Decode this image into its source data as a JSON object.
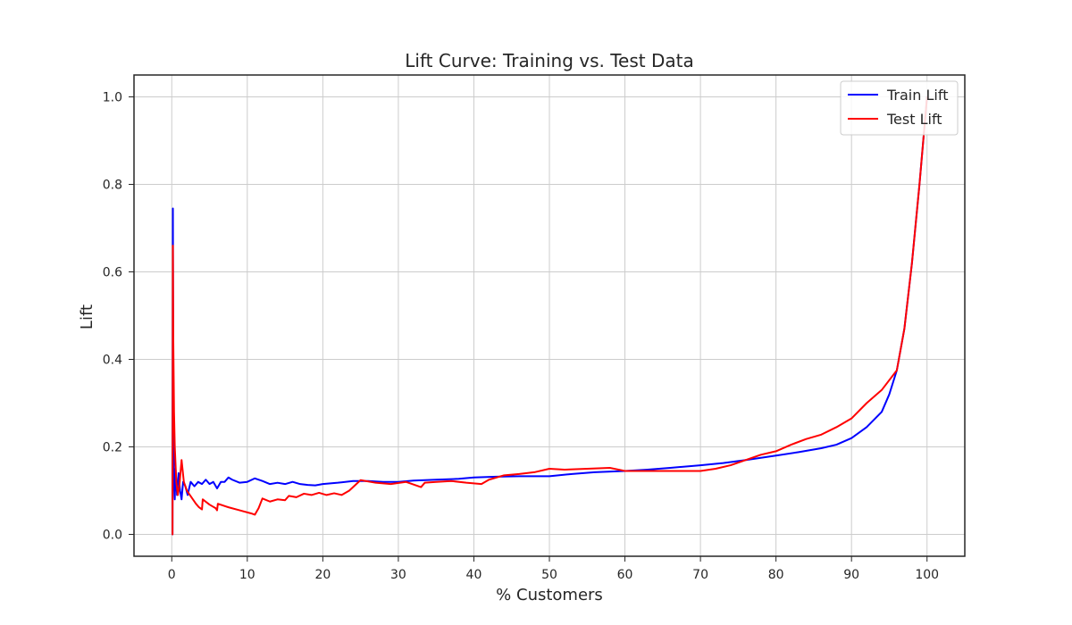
{
  "chart_data": {
    "type": "line",
    "title": "Lift Curve: Training vs. Test Data",
    "xlabel": "% Customers",
    "ylabel": "Lift",
    "xlim": [
      -5,
      105
    ],
    "ylim": [
      -0.05,
      1.05
    ],
    "xticks": [
      0,
      10,
      20,
      30,
      40,
      50,
      60,
      70,
      80,
      90,
      100
    ],
    "yticks": [
      0.0,
      0.2,
      0.4,
      0.6,
      0.8,
      1.0
    ],
    "xtick_labels": [
      "0",
      "10",
      "20",
      "30",
      "40",
      "50",
      "60",
      "70",
      "80",
      "90",
      "100"
    ],
    "ytick_labels": [
      "0.0",
      "0.2",
      "0.4",
      "0.6",
      "0.8",
      "1.0"
    ],
    "grid": true,
    "legend_position": "top-right",
    "series": [
      {
        "name": "Train Lift",
        "color": "#0000ff",
        "x": [
          0.1,
          0.15,
          0.2,
          0.3,
          0.4,
          0.5,
          0.7,
          0.9,
          1.1,
          1.3,
          1.5,
          1.8,
          2.1,
          2.5,
          3.0,
          3.5,
          4.0,
          4.5,
          5.0,
          5.5,
          6.0,
          6.5,
          7.0,
          7.5,
          8.0,
          9.0,
          10.0,
          11.0,
          12.0,
          13.0,
          14.0,
          15.0,
          16.0,
          17.0,
          18.0,
          19.0,
          20.0,
          22.0,
          24.0,
          26.0,
          28.0,
          30.0,
          32.0,
          35.0,
          38.0,
          40.0,
          43.0,
          46.0,
          50.0,
          53.0,
          56.0,
          60.0,
          63.0,
          66.0,
          70.0,
          73.0,
          76.0,
          80.0,
          83.0,
          86.0,
          88.0,
          90.0,
          92.0,
          94.0,
          95.0,
          96.0,
          97.0,
          98.0,
          99.0,
          100.0
        ],
        "y": [
          0.0,
          0.745,
          0.3,
          0.12,
          0.08,
          0.15,
          0.09,
          0.14,
          0.1,
          0.08,
          0.12,
          0.11,
          0.09,
          0.12,
          0.11,
          0.12,
          0.115,
          0.125,
          0.115,
          0.12,
          0.105,
          0.12,
          0.12,
          0.13,
          0.125,
          0.118,
          0.12,
          0.128,
          0.122,
          0.115,
          0.118,
          0.115,
          0.12,
          0.115,
          0.113,
          0.112,
          0.115,
          0.118,
          0.122,
          0.122,
          0.12,
          0.12,
          0.123,
          0.125,
          0.127,
          0.13,
          0.132,
          0.133,
          0.133,
          0.138,
          0.142,
          0.145,
          0.148,
          0.152,
          0.158,
          0.163,
          0.17,
          0.18,
          0.188,
          0.197,
          0.205,
          0.22,
          0.245,
          0.28,
          0.32,
          0.375,
          0.47,
          0.62,
          0.8,
          1.0
        ]
      },
      {
        "name": "Test Lift",
        "color": "#ff0000",
        "x": [
          0.1,
          0.15,
          0.2,
          0.3,
          0.4,
          0.6,
          0.8,
          1.0,
          1.3,
          1.6,
          2.0,
          2.4,
          2.8,
          3.2,
          3.6,
          4.0,
          4.1,
          5.0,
          5.8,
          6.0,
          6.1,
          7.5,
          9.0,
          10.5,
          11.0,
          11.5,
          12.0,
          13.0,
          14.0,
          15.0,
          15.5,
          16.5,
          17.5,
          18.5,
          19.5,
          20.5,
          21.5,
          22.5,
          23.5,
          25.0,
          27.0,
          29.0,
          31.0,
          33.0,
          33.5,
          35.0,
          37.0,
          39.0,
          41.0,
          42.0,
          44.0,
          46.0,
          48.0,
          50.0,
          52.0,
          55.0,
          58.0,
          60.0,
          63.0,
          66.0,
          70.0,
          72.0,
          74.0,
          76.0,
          78.0,
          80.0,
          82.0,
          84.0,
          86.0,
          88.0,
          90.0,
          92.0,
          94.0,
          96.0,
          97.0,
          98.0,
          99.0,
          100.0
        ],
        "y": [
          0.0,
          0.66,
          0.45,
          0.28,
          0.2,
          0.12,
          0.09,
          0.11,
          0.17,
          0.12,
          0.1,
          0.09,
          0.08,
          0.07,
          0.062,
          0.057,
          0.08,
          0.068,
          0.06,
          0.055,
          0.07,
          0.062,
          0.055,
          0.048,
          0.045,
          0.06,
          0.082,
          0.075,
          0.08,
          0.078,
          0.088,
          0.085,
          0.093,
          0.09,
          0.095,
          0.09,
          0.094,
          0.09,
          0.1,
          0.124,
          0.118,
          0.115,
          0.12,
          0.108,
          0.118,
          0.12,
          0.122,
          0.118,
          0.115,
          0.125,
          0.135,
          0.138,
          0.142,
          0.15,
          0.148,
          0.15,
          0.152,
          0.145,
          0.145,
          0.145,
          0.145,
          0.15,
          0.158,
          0.17,
          0.182,
          0.19,
          0.205,
          0.218,
          0.228,
          0.245,
          0.265,
          0.3,
          0.33,
          0.375,
          0.47,
          0.62,
          0.8,
          1.0
        ]
      }
    ]
  }
}
